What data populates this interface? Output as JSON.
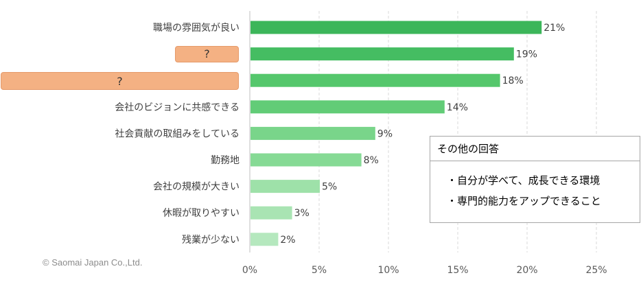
{
  "chart_data": {
    "type": "bar",
    "orientation": "horizontal",
    "categories": [
      "職場の雰囲気が良い",
      "?",
      "?",
      "会社のビジョンに共感できる",
      "社会貢献の取組みをしている",
      "勤務地",
      "会社の規模が大きい",
      "休暇が取りやすい",
      "残業が少ない"
    ],
    "values": [
      21,
      19,
      18,
      14,
      9,
      8,
      5,
      3,
      2
    ],
    "value_labels": [
      "21%",
      "19%",
      "18%",
      "14%",
      "9%",
      "8%",
      "5%",
      "3%",
      "2%"
    ],
    "hidden_categories": [
      1,
      2
    ],
    "xlim": [
      0,
      25
    ],
    "x_ticks": [
      "0%",
      "5%",
      "10%",
      "15%",
      "20%",
      "25%"
    ],
    "grid": true,
    "bar_colors": [
      "#3cb65a",
      "#45bd62",
      "#55c76c",
      "#62cc77",
      "#79d58a",
      "#86da95",
      "#9ee1a9",
      "#a9e4b3",
      "#b5e8be"
    ]
  },
  "other_answers": {
    "title": "その他の回答",
    "items": [
      "・自分が学べて、成長できる環境",
      "・専門的能力をアップできること"
    ]
  },
  "copyright": "© Saomai Japan Co.,Ltd."
}
